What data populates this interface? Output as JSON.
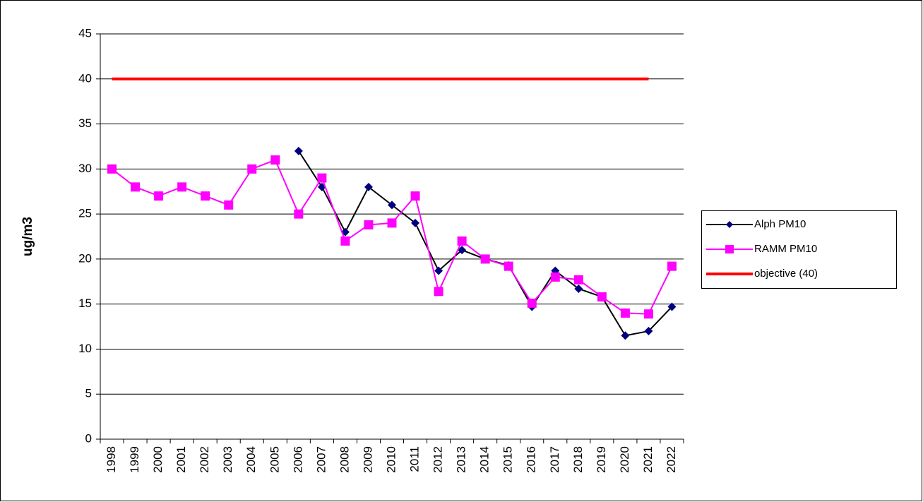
{
  "chart_data": {
    "type": "line",
    "y_label": "ug/m3",
    "categories": [
      "1998",
      "1999",
      "2000",
      "2001",
      "2002",
      "2003",
      "2004",
      "2005",
      "2006",
      "2007",
      "2008",
      "2009",
      "2010",
      "2011",
      "2012",
      "2013",
      "2014",
      "2015",
      "2016",
      "2017",
      "2018",
      "2019",
      "2020",
      "2021",
      "2022"
    ],
    "series": [
      {
        "name": "Alph PM10",
        "color": "#000080",
        "line_color": "#000000",
        "marker": "diamond",
        "values": [
          null,
          null,
          null,
          null,
          null,
          null,
          null,
          null,
          32,
          28,
          23,
          28,
          26,
          24,
          18.7,
          21,
          20,
          19.3,
          14.7,
          18.7,
          16.7,
          15.8,
          11.5,
          12,
          14.7
        ]
      },
      {
        "name": "RAMM PM10",
        "color": "#ff00ff",
        "line_color": "#ff00ff",
        "marker": "square",
        "values": [
          30,
          28,
          27,
          28,
          27,
          26,
          30,
          31,
          25,
          29,
          22,
          23.8,
          24,
          27,
          16.4,
          22,
          20,
          19.2,
          15.1,
          18,
          17.7,
          15.8,
          14,
          13.9,
          19.2
        ]
      },
      {
        "name": "objective (40)",
        "color": "#ff0000",
        "line_color": "#ff0000",
        "marker": "none",
        "values": [
          40,
          40,
          40,
          40,
          40,
          40,
          40,
          40,
          40,
          40,
          40,
          40,
          40,
          40,
          40,
          40,
          40,
          40,
          40,
          40,
          40,
          40,
          40,
          40,
          null
        ]
      }
    ],
    "ylim": [
      0,
      45
    ],
    "yticks": [
      0,
      5,
      10,
      15,
      20,
      25,
      30,
      35,
      40,
      45
    ],
    "grid": true,
    "legend": "right"
  }
}
